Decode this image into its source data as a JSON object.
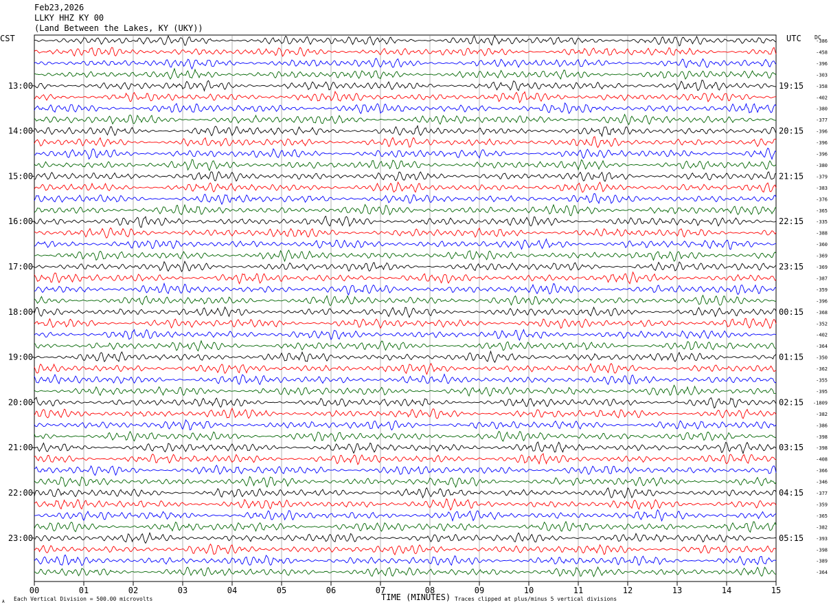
{
  "header": {
    "date": "Feb23,2026",
    "station": "LLKY HHZ KY 00",
    "location": "(Land Between the Lakes, KY (UKY))"
  },
  "left_zone": "CST",
  "right_zone": "UTC",
  "dc_label": "DC",
  "footer": {
    "xlabel": "TIME (MINUTES)",
    "scale_note": "Each Vertical Division =  500.00 microvolts",
    "clip_note": "Traces clipped at plus/minus 5 vertical divisions",
    "corner_mark": "A"
  },
  "colors": {
    "trace_cycle": [
      "#000000",
      "#ff0000",
      "#0000ff",
      "#006400"
    ],
    "grid": "#808080"
  },
  "chart_data": {
    "type": "line",
    "x_ticks": [
      "00",
      "01",
      "02",
      "03",
      "04",
      "05",
      "06",
      "07",
      "08",
      "09",
      "10",
      "11",
      "12",
      "13",
      "14",
      "15"
    ],
    "xlim": [
      0,
      15
    ],
    "rows": 48,
    "rows_per_hour": 4,
    "left_hour_labels": [
      "13:00",
      "14:00",
      "15:00",
      "16:00",
      "17:00",
      "18:00",
      "19:00",
      "20:00",
      "21:00",
      "22:00",
      "23:00"
    ],
    "right_hour_labels": [
      "19:15",
      "20:15",
      "21:15",
      "22:15",
      "23:15",
      "00:15",
      "01:15",
      "02:15",
      "03:15",
      "04:15",
      "05:15"
    ],
    "dc_offsets": [
      "-386",
      "-458",
      "-396",
      "-303",
      "-358",
      "-402",
      "-380",
      "-377",
      "-396",
      "-396",
      "-396",
      "-380",
      "-379",
      "-383",
      "-376",
      "-365",
      "-335",
      "-388",
      "-360",
      "-369",
      "-369",
      "-387",
      "-359",
      "-396",
      "-368",
      "-352",
      "-402",
      "-364",
      "-350",
      "-362",
      "-355",
      "-395",
      "-1809",
      "-382",
      "-386",
      "-398",
      "-398",
      "-408",
      "-366",
      "-346",
      "-377",
      "-359",
      "-365",
      "-382",
      "-393",
      "-398",
      "-389",
      "-364"
    ]
  }
}
